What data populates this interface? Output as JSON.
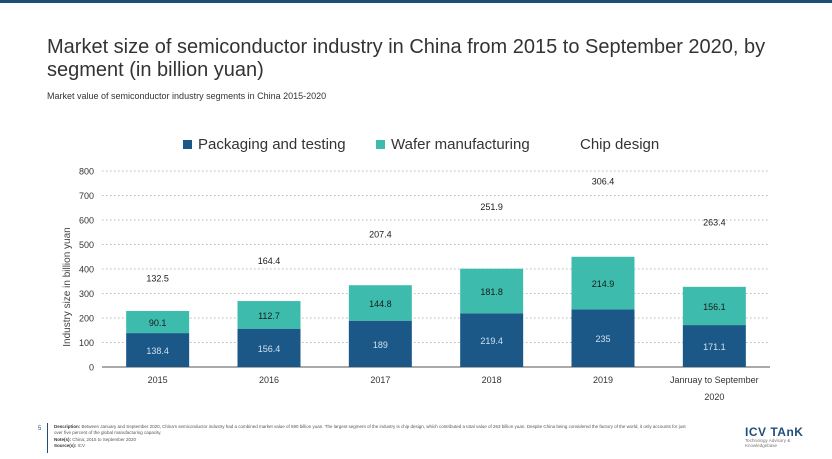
{
  "title": "Market size of semiconductor industry in China from 2015 to September 2020, by segment (in billion yuan)",
  "subtitle": "Market value of semiconductor industry segments in China 2015-2020",
  "colors": {
    "packaging": "#1b5888",
    "wafer": "#3dbcad",
    "grid": "#bbbbbb",
    "axis": "#555555",
    "brand": "#1f4e79"
  },
  "chart_data": {
    "type": "bar",
    "stacked": true,
    "title": "Market size of semiconductor industry in China from 2015 to September 2020, by segment (in billion yuan)",
    "xlabel": "",
    "ylabel": "Industry size in billion yuan",
    "ylim": [
      0,
      800
    ],
    "yticks": [
      0,
      100,
      200,
      300,
      400,
      500,
      600,
      700,
      800
    ],
    "grid": true,
    "legend_position": "top",
    "categories": [
      "2015",
      "2016",
      "2017",
      "2018",
      "2019",
      "Janruay to September 2020"
    ],
    "series": [
      {
        "name": "Packaging and testing",
        "values": [
          138.4,
          156.4,
          189,
          219.4,
          235,
          171.1
        ],
        "labels": [
          "138.4",
          "156.4",
          "189",
          "219.4",
          "235",
          "171.1"
        ]
      },
      {
        "name": "Wafer manufacturing",
        "values": [
          90.1,
          112.7,
          144.8,
          181.8,
          214.9,
          156.1
        ],
        "labels": [
          "90.1",
          "112.7",
          "144.8",
          "181.8",
          "214.9",
          "156.1"
        ]
      },
      {
        "name": "Chip design",
        "values": [
          132.5,
          164.4,
          207.4,
          251.9,
          306.4,
          263.4
        ],
        "labels": [
          "132.5",
          "164.4",
          "207.4",
          "251.9",
          "306.4",
          "263.4"
        ]
      }
    ]
  },
  "footer": {
    "page_number": "5",
    "description_label": "Description:",
    "description": "Between January and September 2020, China's semiconductor industry had a combined market value of 590 billion yuan. The largest segment of the industry is chip design, which contributed a total value of 263 billion yuan. Despite China being considered the factory of the world, it only accounts for just over five percent of the global manufacturing capacity.",
    "notes_label": "Note(s):",
    "notes": "China; 2015 to September 2020",
    "sources_label": "Source(s):",
    "sources": "ICV"
  },
  "brand": {
    "name": "ICV TAnK",
    "tagline": "Technology Advisory & Knowledgebase"
  }
}
